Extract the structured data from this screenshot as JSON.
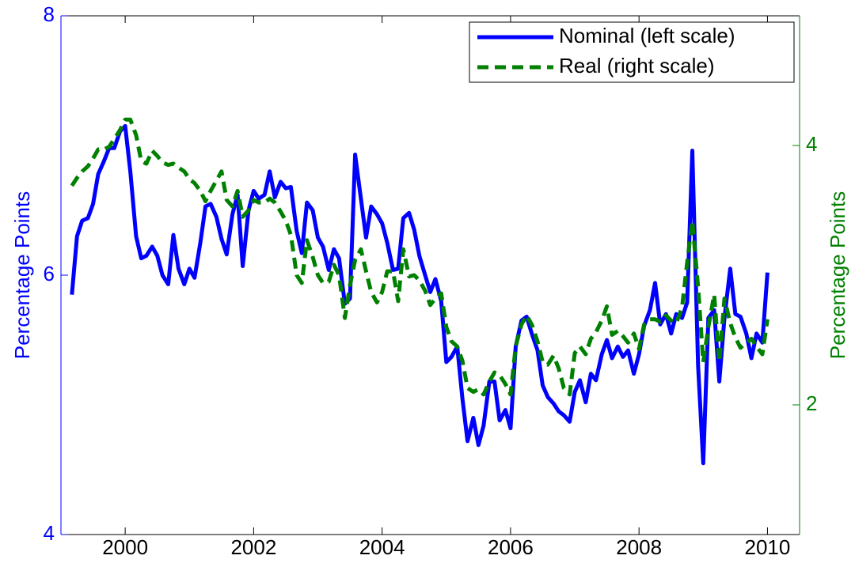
{
  "chart_data": {
    "type": "line",
    "ylabel": "Percentage Points",
    "y2label": "Percentage Points",
    "legend": "upper right",
    "grid": false,
    "xlim": [
      1999,
      2010.5
    ],
    "xticks": [
      2000,
      2002,
      2004,
      2006,
      2008,
      2010
    ],
    "ylim": [
      4,
      8
    ],
    "yticks": [
      4,
      6,
      8
    ],
    "y2lim": [
      1,
      5
    ],
    "y2ticks": [
      2,
      4
    ],
    "x": [
      1999.17,
      1999.25,
      1999.33,
      1999.42,
      1999.5,
      1999.58,
      1999.67,
      1999.75,
      1999.83,
      1999.92,
      2000,
      2000.08,
      2000.17,
      2000.25,
      2000.33,
      2000.42,
      2000.5,
      2000.58,
      2000.67,
      2000.75,
      2000.83,
      2000.92,
      2001,
      2001.08,
      2001.17,
      2001.25,
      2001.33,
      2001.42,
      2001.5,
      2001.58,
      2001.67,
      2001.75,
      2001.83,
      2001.92,
      2002,
      2002.08,
      2002.17,
      2002.25,
      2002.33,
      2002.42,
      2002.5,
      2002.58,
      2002.67,
      2002.75,
      2002.83,
      2002.92,
      2003,
      2003.08,
      2003.17,
      2003.25,
      2003.33,
      2003.42,
      2003.5,
      2003.58,
      2003.67,
      2003.75,
      2003.83,
      2003.92,
      2004,
      2004.08,
      2004.17,
      2004.25,
      2004.33,
      2004.42,
      2004.5,
      2004.58,
      2004.67,
      2004.75,
      2004.83,
      2004.92,
      2005,
      2005.08,
      2005.17,
      2005.25,
      2005.33,
      2005.42,
      2005.5,
      2005.58,
      2005.67,
      2005.75,
      2005.83,
      2005.92,
      2006,
      2006.08,
      2006.17,
      2006.25,
      2006.33,
      2006.42,
      2006.5,
      2006.58,
      2006.67,
      2006.75,
      2006.83,
      2006.92,
      2007,
      2007.08,
      2007.17,
      2007.25,
      2007.33,
      2007.42,
      2007.5,
      2007.58,
      2007.67,
      2007.75,
      2007.83,
      2007.92,
      2008,
      2008.08,
      2008.17,
      2008.25,
      2008.33,
      2008.42,
      2008.5,
      2008.58,
      2008.67,
      2008.75,
      2008.83,
      2008.92,
      2009,
      2009.08,
      2009.17,
      2009.25,
      2009.33,
      2009.42,
      2009.5,
      2009.58,
      2009.67,
      2009.75,
      2009.83,
      2009.92,
      2010
    ],
    "series": [
      {
        "name": "Nominal (left scale)",
        "color": "#0000ff",
        "linestyle": "solid",
        "axis": "y",
        "values": [
          5.85,
          6.3,
          6.42,
          6.44,
          6.55,
          6.78,
          6.88,
          6.98,
          6.98,
          7.11,
          7.15,
          6.8,
          6.3,
          6.13,
          6.15,
          6.22,
          6.15,
          6.0,
          5.93,
          6.31,
          6.05,
          5.93,
          6.05,
          5.98,
          6.25,
          6.53,
          6.55,
          6.45,
          6.28,
          6.16,
          6.47,
          6.62,
          6.07,
          6.5,
          6.65,
          6.59,
          6.62,
          6.8,
          6.6,
          6.72,
          6.67,
          6.68,
          6.34,
          6.17,
          6.56,
          6.5,
          6.29,
          6.22,
          6.04,
          6.2,
          6.13,
          5.78,
          5.82,
          6.93,
          6.59,
          6.29,
          6.53,
          6.47,
          6.4,
          6.25,
          6.04,
          6.05,
          6.44,
          6.48,
          6.35,
          6.15,
          6.0,
          5.87,
          5.97,
          5.8,
          5.33,
          5.37,
          5.45,
          5.05,
          4.72,
          4.9,
          4.69,
          4.84,
          5.18,
          5.18,
          4.88,
          4.96,
          4.82,
          5.45,
          5.65,
          5.68,
          5.55,
          5.42,
          5.15,
          5.06,
          5.01,
          4.95,
          4.92,
          4.87,
          5.1,
          5.19,
          5.02,
          5.24,
          5.19,
          5.39,
          5.5,
          5.36,
          5.45,
          5.37,
          5.42,
          5.24,
          5.39,
          5.61,
          5.73,
          5.94,
          5.62,
          5.7,
          5.55,
          5.7,
          5.67,
          5.79,
          6.96,
          5.3,
          4.55,
          5.67,
          5.73,
          5.18,
          5.67,
          6.05,
          5.7,
          5.68,
          5.55,
          5.36,
          5.55,
          5.48,
          6.02
        ]
      },
      {
        "name": "Real (right scale)",
        "color": "#008000",
        "linestyle": "dashed",
        "axis": "y2",
        "values": [
          3.69,
          3.75,
          3.8,
          3.84,
          3.9,
          3.97,
          3.97,
          3.99,
          4.05,
          4.12,
          4.2,
          4.2,
          4.08,
          3.88,
          3.86,
          3.96,
          3.92,
          3.87,
          3.85,
          3.86,
          3.83,
          3.8,
          3.74,
          3.71,
          3.65,
          3.57,
          3.65,
          3.73,
          3.8,
          3.58,
          3.53,
          3.65,
          3.45,
          3.5,
          3.58,
          3.56,
          3.56,
          3.59,
          3.56,
          3.49,
          3.42,
          3.31,
          3.0,
          2.94,
          3.27,
          3.14,
          3.0,
          2.94,
          2.95,
          3.08,
          3.0,
          2.67,
          2.92,
          3.12,
          3.2,
          3.03,
          2.87,
          2.79,
          2.87,
          3.03,
          3.03,
          2.8,
          3.2,
          2.99,
          3.0,
          2.96,
          2.88,
          2.77,
          2.82,
          2.86,
          2.6,
          2.49,
          2.45,
          2.34,
          2.13,
          2.1,
          2.12,
          2.08,
          2.18,
          2.25,
          2.23,
          2.16,
          2.08,
          2.45,
          2.62,
          2.69,
          2.62,
          2.49,
          2.33,
          2.31,
          2.38,
          2.28,
          2.13,
          2.08,
          2.4,
          2.45,
          2.39,
          2.51,
          2.56,
          2.65,
          2.76,
          2.54,
          2.57,
          2.53,
          2.48,
          2.55,
          2.43,
          2.62,
          2.66,
          2.66,
          2.64,
          2.69,
          2.65,
          2.63,
          2.75,
          3.1,
          3.42,
          2.91,
          2.33,
          2.6,
          2.85,
          2.33,
          2.82,
          2.63,
          2.52,
          2.44,
          2.48,
          2.51,
          2.45,
          2.39,
          2.66
        ]
      }
    ]
  }
}
